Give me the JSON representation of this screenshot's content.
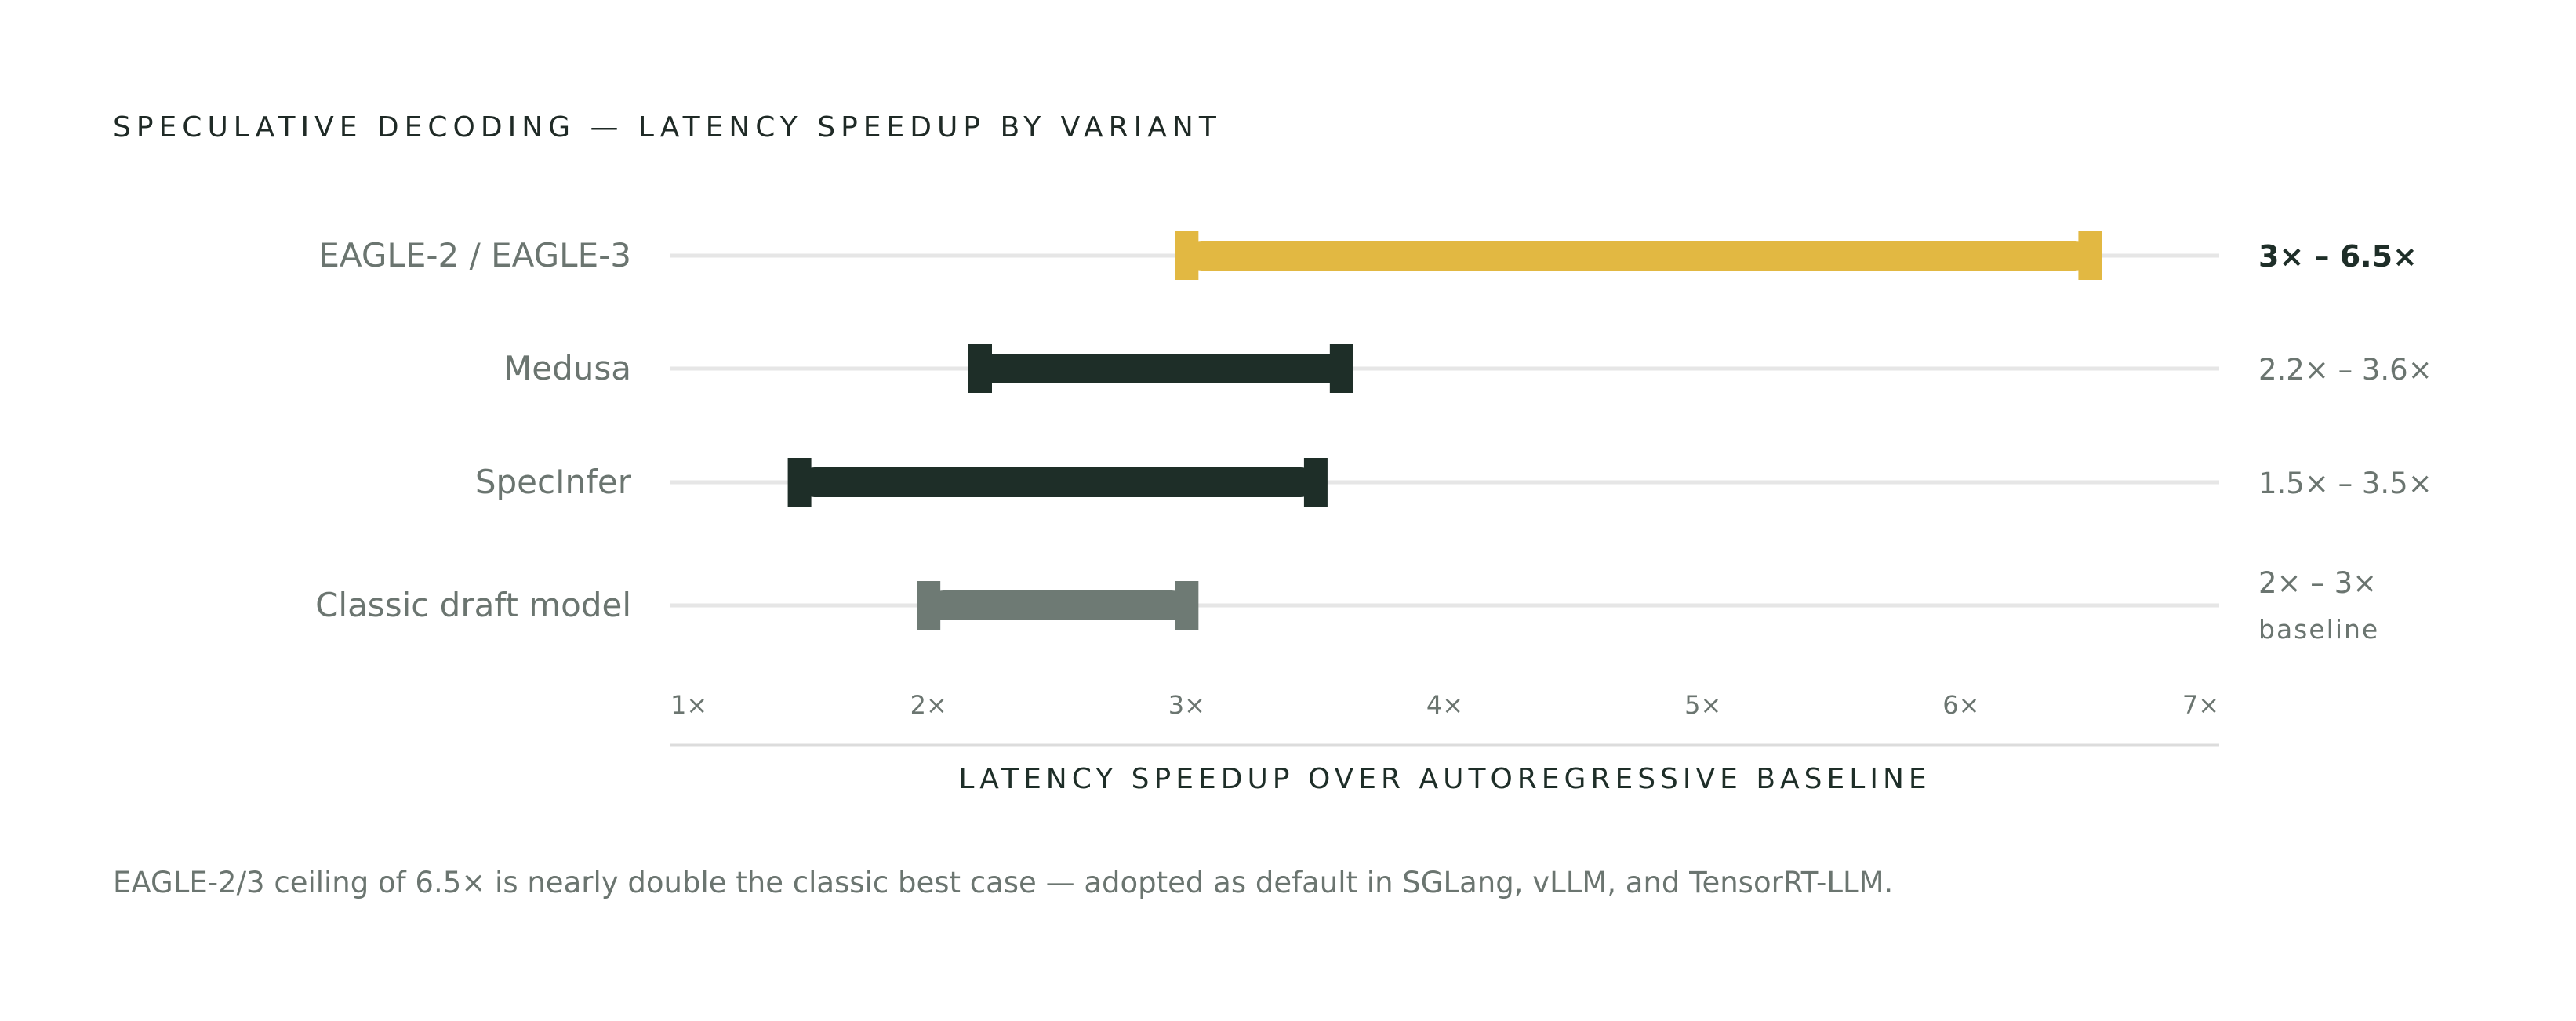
{
  "title": "SPECULATIVE DECODING — LATENCY SPEEDUP BY VARIANT",
  "footnote": "EAGLE-2/3 ceiling of 6.5× is nearly double the classic best case — adopted as default in SGLang, vLLM, and TensorRT-LLM.",
  "colors": {
    "highlight": "#e2b842",
    "dark": "#1e2e28",
    "muted": "#6e7a74",
    "grid": "#e6e6e6",
    "text": "#6b7570",
    "text_dark": "#1e2e28"
  },
  "chart_data": {
    "type": "range-bar",
    "xlabel": "LATENCY SPEEDUP OVER AUTOREGRESSIVE BASELINE",
    "xlim": [
      1,
      7
    ],
    "xticks": [
      {
        "value": 1,
        "label": "1×"
      },
      {
        "value": 2,
        "label": "2×"
      },
      {
        "value": 3,
        "label": "3×"
      },
      {
        "value": 4,
        "label": "4×"
      },
      {
        "value": 5,
        "label": "5×"
      },
      {
        "value": 6,
        "label": "6×"
      },
      {
        "value": 7,
        "label": "7×"
      }
    ],
    "series": [
      {
        "name": "EAGLE-2 / EAGLE-3",
        "low": 3.0,
        "high": 6.5,
        "range_label": "3× – 6.5×",
        "sublabel": "",
        "style": "highlight"
      },
      {
        "name": "Medusa",
        "low": 2.2,
        "high": 3.6,
        "range_label": "2.2× – 3.6×",
        "sublabel": "",
        "style": "dark"
      },
      {
        "name": "SpecInfer",
        "low": 1.5,
        "high": 3.5,
        "range_label": "1.5× – 3.5×",
        "sublabel": "",
        "style": "dark"
      },
      {
        "name": "Classic draft model",
        "low": 2.0,
        "high": 3.0,
        "range_label": "2× – 3×",
        "sublabel": "baseline",
        "style": "muted"
      }
    ]
  }
}
